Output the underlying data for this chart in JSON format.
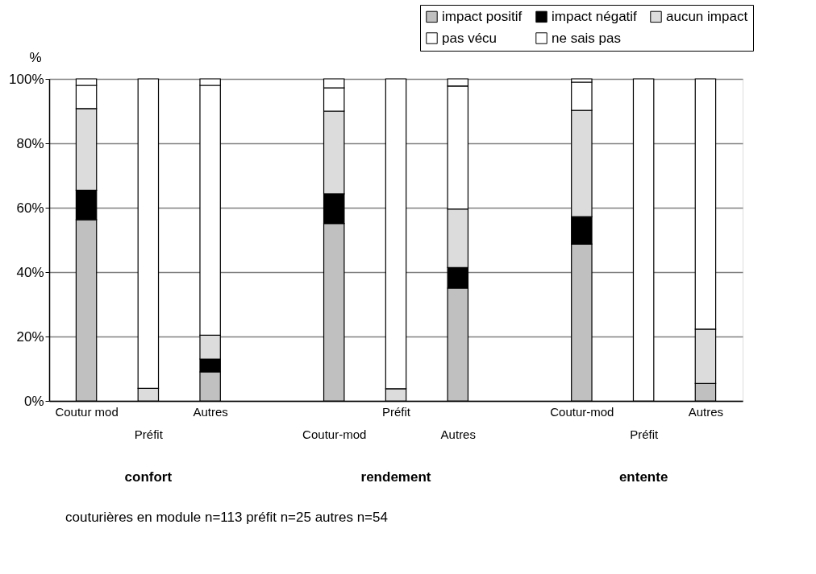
{
  "chart_data": {
    "type": "bar",
    "stacked": true,
    "categories": [
      "Coutur mod",
      "Préfit",
      "Autres",
      "Coutur-mod",
      "Préfit",
      "Autres",
      "Coutur-mod",
      "Préfit",
      "Autres"
    ],
    "series": [
      {
        "name": "impact positif",
        "color": "#c0c0c0",
        "values": [
          56.3,
          0,
          9.0,
          55.1,
          0,
          35.0,
          48.7,
          0,
          5.4
        ]
      },
      {
        "name": "impact négatif",
        "color": "#000000",
        "values": [
          9.1,
          0,
          4.0,
          9.2,
          0,
          6.4,
          8.5,
          0,
          0
        ]
      },
      {
        "name": "aucun impact",
        "color": "#dcdcdc",
        "values": [
          25.4,
          3.9,
          7.4,
          25.7,
          3.8,
          18.2,
          33.0,
          0,
          16.9
        ]
      },
      {
        "name": "pas vécu",
        "color": "#ffffff",
        "values": [
          7.2,
          96.1,
          77.6,
          7.2,
          96.2,
          38.2,
          8.8,
          100,
          77.7
        ]
      },
      {
        "name": "ne sais pas",
        "color": "#ffffff",
        "values": [
          2.0,
          0,
          2.0,
          2.8,
          0,
          2.2,
          1.0,
          0,
          0
        ]
      }
    ],
    "ylabel": "%",
    "ylim": [
      0,
      100
    ],
    "yticks": [
      {
        "value": 0,
        "label": "0%"
      },
      {
        "value": 20,
        "label": "20%"
      },
      {
        "value": 40,
        "label": "40%"
      },
      {
        "value": 60,
        "label": "60%"
      },
      {
        "value": 80,
        "label": "80%"
      },
      {
        "value": 100,
        "label": "100%"
      }
    ],
    "grid": "y",
    "legend": "top right",
    "annotations": [
      "confort",
      "rendement",
      "entente",
      "couturières en module n=113      préfit n=25   autres n=54"
    ]
  }
}
